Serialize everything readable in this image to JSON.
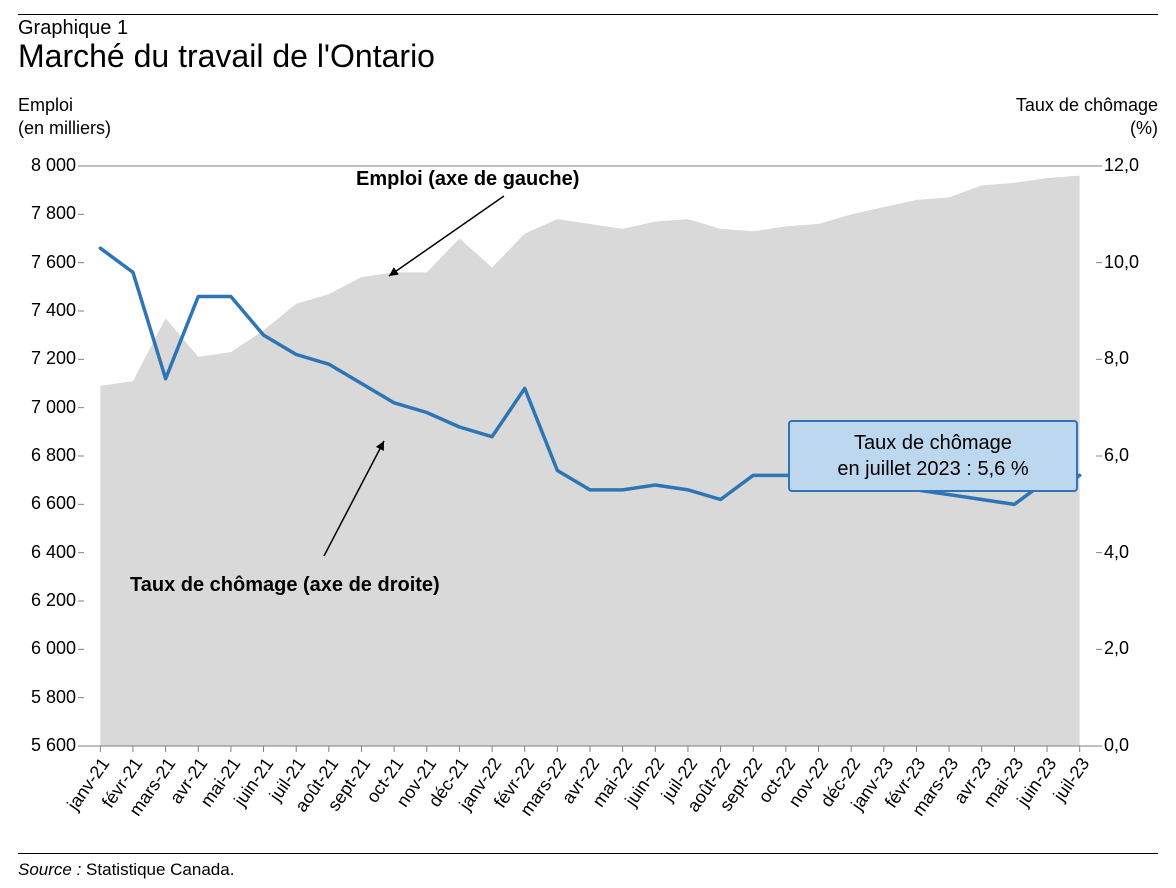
{
  "supertitle": "Graphique 1",
  "title": "Marché du travail de l'Ontario",
  "left_axis": {
    "title_l1": "Emploi",
    "title_l2": "(en milliers)"
  },
  "right_axis": {
    "title_l1": "Taux de chômage",
    "title_l2": "(%)"
  },
  "chart": {
    "type": "combo-area-line",
    "background_color": "#ffffff",
    "plot_border_color": "#808080",
    "area_fill": "#d9d9d9",
    "line_color": "#2e75b6",
    "line_width": 3.5,
    "y_left": {
      "min": 5600,
      "max": 8000,
      "step": 200,
      "ticks": [
        "5 600",
        "5 800",
        "6 000",
        "6 200",
        "6 400",
        "6 600",
        "6 800",
        "7 000",
        "7 200",
        "7 400",
        "7 600",
        "7 800",
        "8 000"
      ]
    },
    "y_right": {
      "min": 0.0,
      "max": 12.0,
      "step": 2.0,
      "ticks": [
        "0,0",
        "2,0",
        "4,0",
        "6,0",
        "8,0",
        "10,0",
        "12,0"
      ]
    },
    "categories": [
      "janv-21",
      "févr-21",
      "mars-21",
      "avr-21",
      "mai-21",
      "juin-21",
      "juil-21",
      "août-21",
      "sept-21",
      "oct-21",
      "nov-21",
      "déc-21",
      "janv-22",
      "févr-22",
      "mars-22",
      "avr-22",
      "mai-22",
      "juin-22",
      "juil-22",
      "août-22",
      "sept-22",
      "oct-22",
      "nov-22",
      "déc-22",
      "janv-23",
      "févr-23",
      "mars-23",
      "avr-23",
      "mai-23",
      "juin-23",
      "juil-23"
    ],
    "employment": [
      7090,
      7110,
      7370,
      7210,
      7230,
      7320,
      7430,
      7470,
      7540,
      7560,
      7560,
      7700,
      7580,
      7720,
      7780,
      7760,
      7740,
      7770,
      7780,
      7740,
      7730,
      7750,
      7760,
      7800,
      7830,
      7860,
      7870,
      7920,
      7930,
      7950,
      7960
    ],
    "unemployment": [
      10.3,
      9.8,
      7.6,
      9.3,
      9.3,
      8.5,
      8.1,
      7.9,
      7.5,
      7.1,
      6.9,
      6.6,
      6.4,
      7.4,
      5.7,
      5.3,
      5.3,
      5.4,
      5.3,
      5.1,
      5.6,
      5.6,
      5.6,
      5.7,
      5.3,
      5.3,
      5.2,
      5.1,
      5.0,
      5.5,
      5.6
    ],
    "tick_len": 6
  },
  "annotations": {
    "emploi_label": "Emploi (axe de gauche)",
    "chomage_label": "Taux de chômage (axe de droite)",
    "callout_l1": "Taux de chômage",
    "callout_l2": "en juillet 2023 : 5,6 %",
    "callout_bg": "#bdd7ee",
    "callout_border": "#2e75b6",
    "arrow_color": "#000000"
  },
  "source": {
    "label": "Source : ",
    "text": "Statistique Canada."
  },
  "fonts": {
    "title_size": 32,
    "supertitle_size": 20,
    "axis_title_size": 18,
    "tick_size": 18,
    "annot_size": 20,
    "source_size": 17
  }
}
